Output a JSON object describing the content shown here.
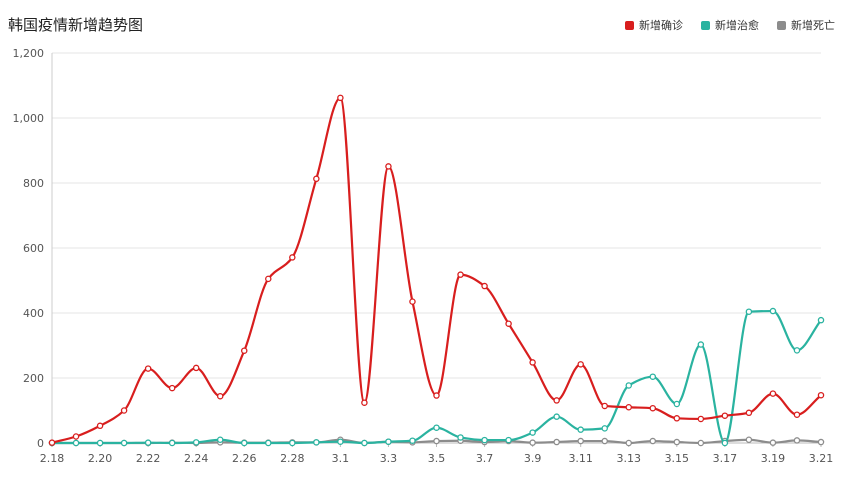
{
  "chart_data": {
    "type": "line",
    "title": "韩国疫情新增趋势图",
    "xlabel": "",
    "ylabel": "",
    "ylim": [
      0,
      1200
    ],
    "yticks": [
      0,
      200,
      400,
      600,
      800,
      1000,
      1200
    ],
    "ytick_labels": [
      "0",
      "200",
      "400",
      "600",
      "800",
      "1,000",
      "1,200"
    ],
    "x": [
      "2.18",
      "2.19",
      "2.20",
      "2.21",
      "2.22",
      "2.23",
      "2.24",
      "2.25",
      "2.26",
      "2.27",
      "2.28",
      "2.29",
      "3.1",
      "3.2",
      "3.3",
      "3.4",
      "3.5",
      "3.6",
      "3.7",
      "3.8",
      "3.9",
      "3.10",
      "3.11",
      "3.12",
      "3.13",
      "3.14",
      "3.15",
      "3.16",
      "3.17",
      "3.18",
      "3.19",
      "3.20",
      "3.21"
    ],
    "xtick_labels": [
      "2.18",
      "2.20",
      "2.22",
      "2.24",
      "2.26",
      "2.28",
      "3.1",
      "3.3",
      "3.5",
      "3.7",
      "3.9",
      "3.11",
      "3.13",
      "3.15",
      "3.17",
      "3.19",
      "3.21"
    ],
    "grid": true,
    "legend_position": "top-right",
    "series": [
      {
        "name": "新增确诊",
        "color": "#d81e1e",
        "values": [
          1,
          20,
          53,
          100,
          229,
          169,
          231,
          144,
          284,
          505,
          571,
          813,
          1062,
          124,
          851,
          435,
          146,
          518,
          483,
          367,
          248,
          131,
          242,
          114,
          110,
          107,
          76,
          74,
          84,
          93,
          152,
          87,
          147
        ]
      },
      {
        "name": "新增治愈",
        "color": "#2ab3a0",
        "values": [
          0,
          0,
          0,
          0,
          1,
          0,
          2,
          10,
          0,
          0,
          0,
          2,
          4,
          0,
          4,
          7,
          47,
          17,
          9,
          9,
          32,
          81,
          41,
          45,
          177,
          204,
          120,
          303,
          0,
          404,
          406,
          285,
          378
        ]
      },
      {
        "name": "新增死亡",
        "color": "#8c8c8c",
        "values": [
          0,
          0,
          0,
          0,
          0,
          1,
          0,
          2,
          1,
          1,
          2,
          2,
          10,
          0,
          4,
          2,
          6,
          7,
          3,
          6,
          1,
          3,
          6,
          6,
          0,
          6,
          3,
          0,
          6,
          10,
          1,
          8,
          3
        ]
      }
    ]
  }
}
